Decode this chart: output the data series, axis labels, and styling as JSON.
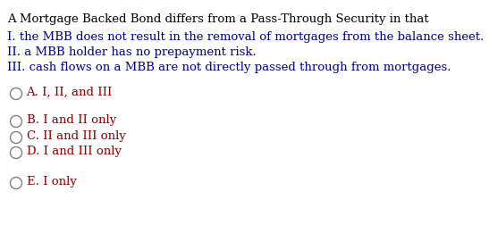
{
  "background_color": "#ffffff",
  "title_line": "A Mortgage Backed Bond differs from a Pass-Through Security in that",
  "statements": [
    "I. the MBB does not result in the removal of mortgages from the balance sheet.",
    "II. a MBB holder has no prepayment risk.",
    "III. cash flows on a MBB are not directly passed through from mortgages."
  ],
  "options": [
    "A. I, II, and III",
    "B. I and II only",
    "C. II and III only",
    "D. I and III only",
    "E. I only"
  ],
  "title_color": "#000000",
  "statement_color": "#00008B",
  "option_color": "#8B0000",
  "circle_color": "#808080",
  "font_size": 9.5,
  "title_font_size": 9.5,
  "figwidth": 5.47,
  "figheight": 2.8,
  "dpi": 100
}
